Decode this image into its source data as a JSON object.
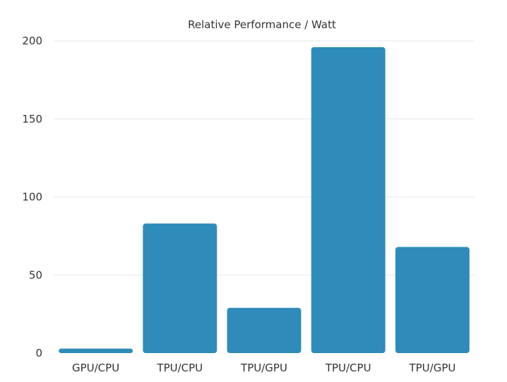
{
  "chart_data": {
    "type": "bar",
    "title": "Relative Performance / Watt",
    "xlabel": "",
    "ylabel": "",
    "categories": [
      "GPU/CPU",
      "TPU/CPU",
      "TPU/GPU",
      "TPU/CPU",
      "TPU/GPU"
    ],
    "values": [
      2.9,
      83,
      29,
      196,
      68
    ],
    "ylim": [
      0,
      200
    ],
    "yticks": [
      "0",
      "50",
      "100",
      "150",
      "200"
    ],
    "grid": true,
    "legend": "none",
    "bar_color": "#2e8bba"
  }
}
